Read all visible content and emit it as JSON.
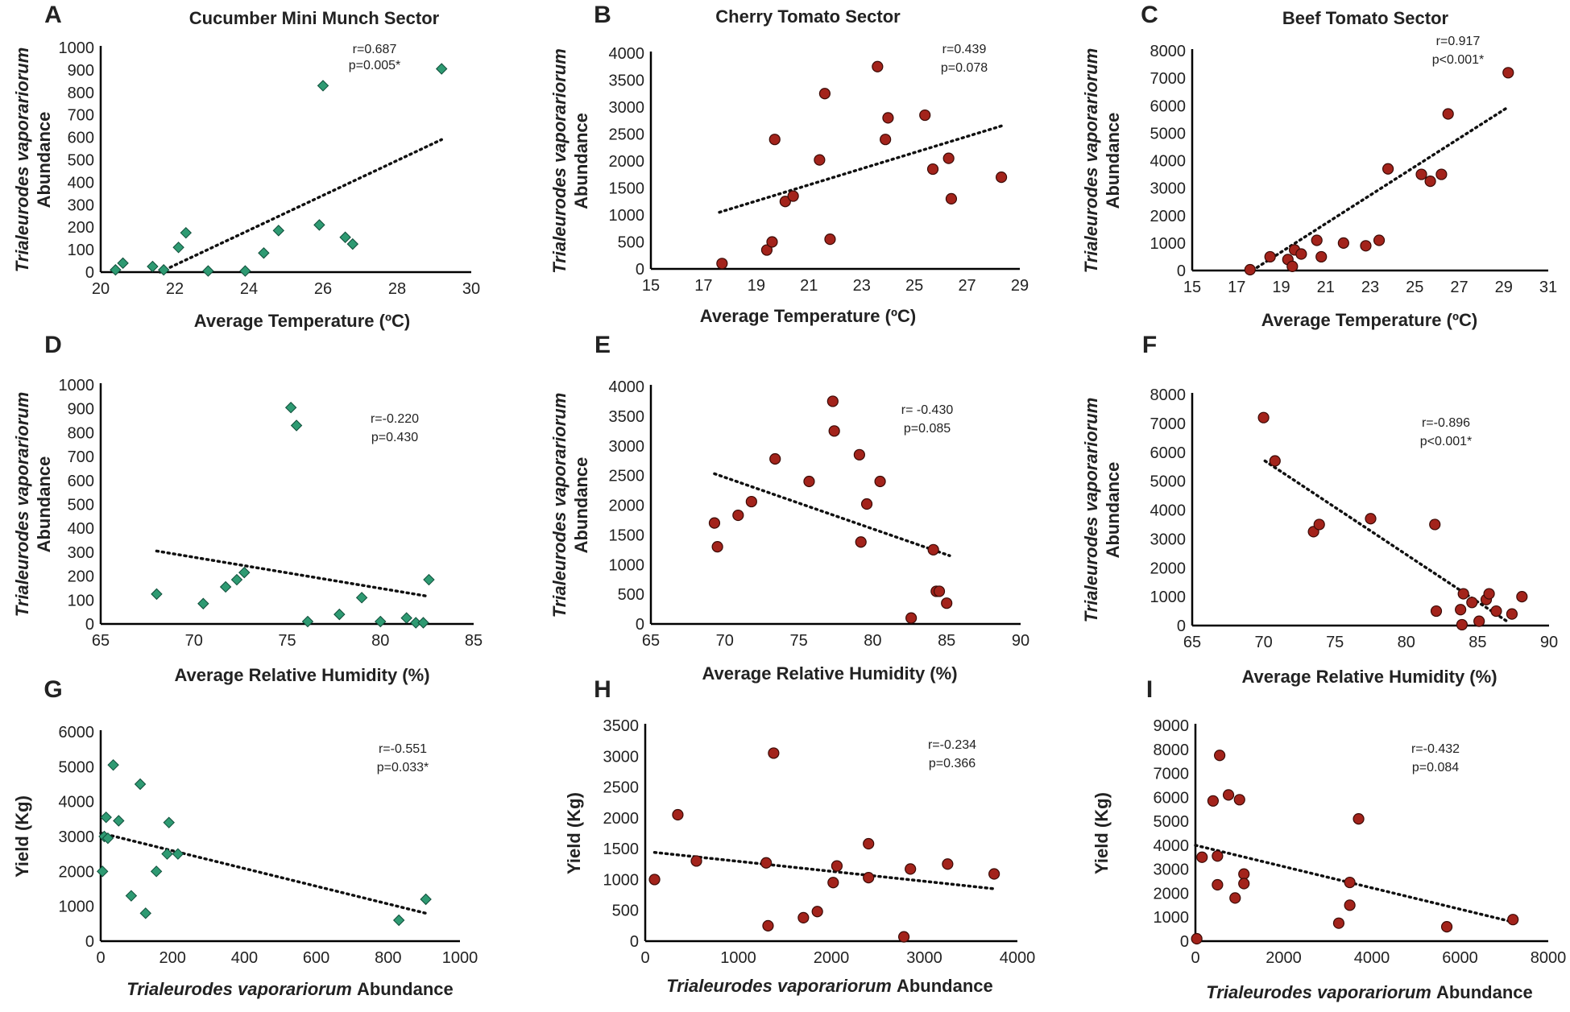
{
  "chart_data": [
    {
      "panel": "A",
      "title": "Cucumber Mini Munch Sector",
      "type": "scatter",
      "marker": "diamond",
      "xlabel": "Average Temperature (ºC)",
      "ylabel_italic": "Trialeurodes vaporariorum",
      "ylabel": "Abundance",
      "xlim": [
        20,
        30
      ],
      "xticks": [
        "20",
        "22",
        "24",
        "26",
        "28",
        "30"
      ],
      "ylim": [
        0,
        1000
      ],
      "yticks": [
        "0",
        "100",
        "200",
        "300",
        "400",
        "500",
        "600",
        "700",
        "800",
        "900",
        "1000"
      ],
      "stats": [
        "r=0.687",
        "p=0.005*"
      ],
      "trend": [
        [
          21.6,
          0
        ],
        [
          29.2,
          590
        ]
      ],
      "x": [
        20.4,
        20.6,
        21.4,
        21.7,
        22.1,
        22.3,
        22.9,
        23.9,
        24.4,
        24.8,
        25.9,
        26.6,
        26.8,
        26.0,
        29.2
      ],
      "y": [
        10,
        40,
        25,
        10,
        110,
        175,
        5,
        5,
        85,
        185,
        210,
        155,
        125,
        830,
        905
      ]
    },
    {
      "panel": "B",
      "title": "Cherry Tomato Sector",
      "type": "scatter",
      "marker": "circle",
      "xlabel": "Average Temperature (ºC)",
      "ylabel_italic": "Trialeurodes vaporariorum",
      "ylabel": "Abundance",
      "xlim": [
        15,
        29
      ],
      "xticks": [
        "15",
        "17",
        "19",
        "21",
        "23",
        "25",
        "27",
        "29"
      ],
      "ylim": [
        0,
        4000
      ],
      "yticks": [
        "0",
        "500",
        "1000",
        "1500",
        "2000",
        "2500",
        "3000",
        "3500",
        "4000"
      ],
      "stats": [
        "r=0.439",
        "p=0.078"
      ],
      "trend": [
        [
          17.6,
          1050
        ],
        [
          28.3,
          2650
        ]
      ],
      "x": [
        17.7,
        19.4,
        19.6,
        19.7,
        20.1,
        20.4,
        21.4,
        21.6,
        21.8,
        23.6,
        23.9,
        24.0,
        25.4,
        25.7,
        26.3,
        26.4,
        28.3
      ],
      "y": [
        100,
        350,
        500,
        2400,
        1250,
        1350,
        2020,
        3250,
        550,
        3750,
        2400,
        2800,
        2850,
        1850,
        2050,
        1300,
        1700
      ]
    },
    {
      "panel": "C",
      "title": "Beef Tomato Sector",
      "type": "scatter",
      "marker": "circle",
      "xlabel": "Average Temperature (ºC)",
      "ylabel_italic": "Trialeurodes vaporariorum",
      "ylabel": "Abundance",
      "xlim": [
        15,
        31
      ],
      "xticks": [
        "15",
        "17",
        "19",
        "21",
        "23",
        "25",
        "27",
        "29",
        "31"
      ],
      "ylim": [
        0,
        8000
      ],
      "yticks": [
        "0",
        "1000",
        "2000",
        "3000",
        "4000",
        "5000",
        "6000",
        "7000",
        "8000"
      ],
      "stats": [
        "r=0.917",
        "p<0.001*"
      ],
      "trend": [
        [
          17.7,
          0
        ],
        [
          29.2,
          5950
        ]
      ],
      "x": [
        17.6,
        18.5,
        19.3,
        19.5,
        19.6,
        19.9,
        20.6,
        20.8,
        21.8,
        22.8,
        23.4,
        23.8,
        25.3,
        25.7,
        26.2,
        26.5,
        29.2
      ],
      "y": [
        30,
        500,
        400,
        150,
        750,
        600,
        1100,
        500,
        1000,
        900,
        1100,
        3700,
        3500,
        3250,
        3500,
        5700,
        7200
      ]
    },
    {
      "panel": "D",
      "type": "scatter",
      "marker": "diamond",
      "xlabel": "Average Relative Humidity (%)",
      "ylabel_italic": "Trialeurodes vaporariorum",
      "ylabel": "Abundance",
      "xlim": [
        65,
        85
      ],
      "xticks": [
        "65",
        "70",
        "75",
        "80",
        "85"
      ],
      "ylim": [
        0,
        1000
      ],
      "yticks": [
        "0",
        "100",
        "200",
        "300",
        "400",
        "500",
        "600",
        "700",
        "800",
        "900",
        "1000"
      ],
      "stats": [
        "r=-0.220",
        "p=0.430"
      ],
      "trend": [
        [
          68,
          305
        ],
        [
          82.6,
          115
        ]
      ],
      "x": [
        68.0,
        70.5,
        71.7,
        72.3,
        72.7,
        75.2,
        75.5,
        76.1,
        77.8,
        79.0,
        80.0,
        81.4,
        81.9,
        82.3,
        82.6
      ],
      "y": [
        125,
        85,
        155,
        185,
        215,
        905,
        830,
        10,
        40,
        110,
        10,
        25,
        5,
        5,
        185
      ]
    },
    {
      "panel": "E",
      "type": "scatter",
      "marker": "circle",
      "xlabel": "Average Relative Humidity (%)",
      "ylabel_italic": "Trialeurodes vaporariorum",
      "ylabel": "Abundance",
      "xlim": [
        65,
        90
      ],
      "xticks": [
        "65",
        "70",
        "75",
        "80",
        "85",
        "90"
      ],
      "ylim": [
        0,
        4000
      ],
      "yticks": [
        "0",
        "500",
        "1000",
        "1500",
        "2000",
        "2500",
        "3000",
        "3500",
        "4000"
      ],
      "stats": [
        "r= -0.430",
        "p=0.085"
      ],
      "trend": [
        [
          69.3,
          2530
        ],
        [
          85.2,
          1150
        ]
      ],
      "x": [
        69.3,
        69.5,
        70.9,
        71.8,
        73.4,
        75.7,
        77.3,
        77.4,
        79.1,
        79.2,
        79.6,
        80.5,
        84.1,
        84.3,
        84.5,
        85.0,
        82.6
      ],
      "y": [
        1700,
        1300,
        1830,
        2060,
        2780,
        2400,
        3750,
        3250,
        2850,
        1380,
        2020,
        2400,
        1250,
        550,
        550,
        350,
        100
      ]
    },
    {
      "panel": "F",
      "type": "scatter",
      "marker": "circle",
      "xlabel": "Average Relative Humidity (%)",
      "ylabel_italic": "Trialeurodes vaporariorum",
      "ylabel": "Abundance",
      "xlim": [
        65,
        90
      ],
      "xticks": [
        "65",
        "70",
        "75",
        "80",
        "85",
        "90"
      ],
      "ylim": [
        0,
        8000
      ],
      "yticks": [
        "0",
        "1000",
        "2000",
        "3000",
        "4000",
        "5000",
        "6000",
        "7000",
        "8000"
      ],
      "stats": [
        "r=-0.896",
        "p<0.001*"
      ],
      "trend": [
        [
          70.1,
          5700
        ],
        [
          87.2,
          100
        ]
      ],
      "x": [
        70.0,
        70.8,
        73.5,
        73.9,
        77.5,
        82.0,
        82.1,
        83.8,
        83.9,
        84.0,
        84.6,
        85.1,
        85.6,
        85.8,
        86.3,
        87.4,
        88.1
      ],
      "y": [
        7200,
        5700,
        3250,
        3500,
        3700,
        3500,
        500,
        550,
        30,
        1100,
        800,
        150,
        900,
        1100,
        500,
        400,
        1000
      ]
    },
    {
      "panel": "G",
      "type": "scatter",
      "marker": "diamond",
      "xlabel_italic": "Trialeurodes vaporariorum",
      "xlabel": "Abundance",
      "ylabel": "Yield (Kg)",
      "xlim": [
        0,
        1000
      ],
      "xticks": [
        "0",
        "200",
        "400",
        "600",
        "800",
        "1000"
      ],
      "ylim": [
        0,
        6000
      ],
      "yticks": [
        "0",
        "1000",
        "2000",
        "3000",
        "4000",
        "5000",
        "6000"
      ],
      "stats": [
        "r=-0.551",
        "p=0.033*"
      ],
      "trend": [
        [
          0,
          3100
        ],
        [
          905,
          800
        ]
      ],
      "x": [
        5,
        10,
        15,
        20,
        35,
        50,
        85,
        110,
        125,
        155,
        185,
        190,
        215,
        830,
        905
      ],
      "y": [
        2000,
        3000,
        3550,
        2950,
        5050,
        3450,
        1300,
        4500,
        800,
        2000,
        2500,
        3400,
        2500,
        600,
        1200
      ]
    },
    {
      "panel": "H",
      "type": "scatter",
      "marker": "circle",
      "xlabel_italic": "Trialeurodes vaporariorum",
      "xlabel": "Abundance",
      "ylabel": "Yield (Kg)",
      "xlim": [
        0,
        4000
      ],
      "xticks": [
        "0",
        "1000",
        "2000",
        "3000",
        "4000"
      ],
      "ylim": [
        0,
        3500
      ],
      "yticks": [
        "0",
        "500",
        "1000",
        "1500",
        "2000",
        "2500",
        "3000",
        "3500"
      ],
      "stats": [
        "r=-0.234",
        "p=0.366"
      ],
      "trend": [
        [
          100,
          1440
        ],
        [
          3750,
          850
        ]
      ],
      "x": [
        100,
        350,
        550,
        1300,
        1320,
        1380,
        1700,
        1850,
        2020,
        2060,
        2400,
        2400,
        2780,
        2850,
        3250,
        3750
      ],
      "y": [
        1000,
        2050,
        1300,
        1270,
        250,
        3050,
        380,
        480,
        950,
        1220,
        1030,
        1580,
        70,
        1170,
        1250,
        1090
      ]
    },
    {
      "panel": "I",
      "type": "scatter",
      "marker": "circle",
      "xlabel_italic": "Trialeurodes vaporariorum",
      "xlabel": "Abundance",
      "ylabel": "Yield (Kg)",
      "xlim": [
        0,
        8000
      ],
      "xticks": [
        "0",
        "2000",
        "4000",
        "6000",
        "8000"
      ],
      "ylim": [
        0,
        9000
      ],
      "yticks": [
        "0",
        "1000",
        "2000",
        "3000",
        "4000",
        "5000",
        "6000",
        "7000",
        "8000",
        "9000"
      ],
      "stats": [
        "r=-0.432",
        "p=0.084"
      ],
      "trend": [
        [
          0,
          4000
        ],
        [
          7200,
          800
        ]
      ],
      "x": [
        30,
        150,
        400,
        500,
        500,
        550,
        750,
        900,
        1000,
        1100,
        1100,
        3250,
        3500,
        3500,
        3700,
        5700,
        7200
      ],
      "y": [
        100,
        3500,
        5850,
        2350,
        3550,
        7750,
        6100,
        1800,
        5900,
        2800,
        2400,
        750,
        2450,
        1500,
        5100,
        600,
        900
      ]
    }
  ]
}
